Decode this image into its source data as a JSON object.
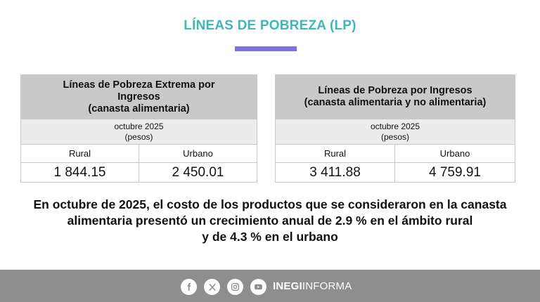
{
  "page": {
    "title": "LÍNEAS DE POBREZA (LP)"
  },
  "table_extrema": {
    "heading_line1": "Líneas de Pobreza Extrema por",
    "heading_line2": "Ingresos",
    "heading_line3": "(canasta alimentaria)",
    "period": "octubre 2025",
    "unit": "(pesos)",
    "col_rural": "Rural",
    "col_urbano": "Urbano",
    "val_rural": "1 844.15",
    "val_urbano": "2 450.01"
  },
  "table_pobreza": {
    "heading_line1": "Líneas de Pobreza por Ingresos",
    "heading_line2": "(canasta alimentaria y no alimentaria)",
    "period": "octubre 2025",
    "unit": "(pesos)",
    "col_rural": "Rural",
    "col_urbano": "Urbano",
    "val_rural": "3 411.88",
    "val_urbano": "4 759.91"
  },
  "summary": {
    "line1": "En octubre de 2025, el costo de los productos que se consideraron en la canasta",
    "line2": "alimentaria presentó un crecimiento anual de 2.9 % en el ámbito rural",
    "line3": "y de 4.3 % en el urbano"
  },
  "footer": {
    "brand_bold": "INEGI",
    "brand_light": "INFORMA",
    "icons": [
      "facebook-icon",
      "x-icon",
      "instagram-icon",
      "youtube-icon"
    ],
    "background": "#8e8e8e"
  },
  "colors": {
    "title": "#3fb7b5",
    "accent_bar": "#7d73d6",
    "table_header": "#c9c9c9",
    "table_subheader": "#ececec"
  }
}
